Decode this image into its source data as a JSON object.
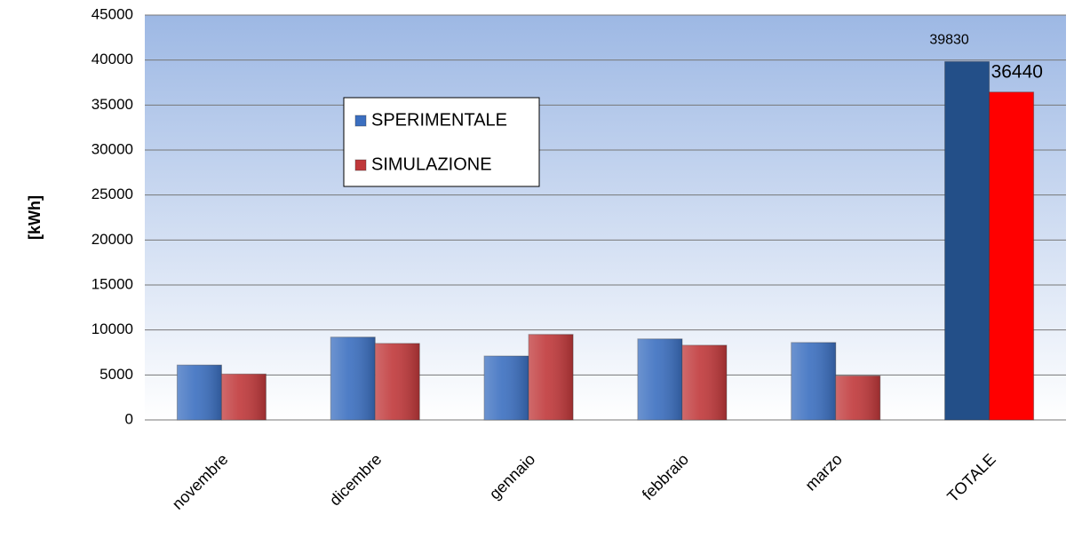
{
  "chart_data": {
    "type": "bar",
    "y_label": "[kWh]",
    "categories": [
      "novembre",
      "dicembre",
      "gennaio",
      "febbraio",
      "marzo",
      "TOTALE"
    ],
    "series": [
      {
        "name": "SPERIMENTALE",
        "color": "#3b6fc0",
        "colors": [
          "#3b6fc0",
          "#3b6fc0",
          "#3b6fc0",
          "#3b6fc0",
          "#3b6fc0",
          "#234f88"
        ],
        "values": [
          6100,
          9200,
          7100,
          9000,
          8600,
          39830
        ],
        "value_labels": [
          null,
          null,
          null,
          null,
          null,
          "39830"
        ]
      },
      {
        "name": "SIMULAZIONE",
        "color": "#c0383a",
        "colors": [
          "#c0383a",
          "#c0383a",
          "#c0383a",
          "#c0383a",
          "#c0383a",
          "#ff0000"
        ],
        "values": [
          5100,
          8500,
          9500,
          8300,
          4900,
          36440
        ],
        "value_labels": [
          null,
          null,
          null,
          null,
          null,
          "36440"
        ]
      }
    ],
    "ylim": [
      0,
      45000
    ],
    "yticks": [
      0,
      5000,
      10000,
      15000,
      20000,
      25000,
      30000,
      35000,
      40000,
      45000
    ],
    "grid": true,
    "legend": "inside"
  }
}
